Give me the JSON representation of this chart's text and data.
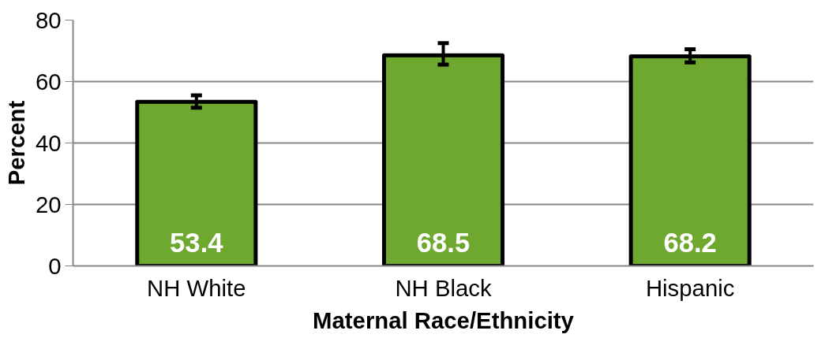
{
  "chart_data": {
    "type": "bar",
    "xlabel": "Maternal Race/Ethnicity",
    "ylabel": "Percent",
    "categories": [
      "NH White",
      "NH Black",
      "Hispanic"
    ],
    "values": [
      53.4,
      68.5,
      68.2
    ],
    "errors": [
      [
        51.5,
        55.5
      ],
      [
        65.5,
        72.5
      ],
      [
        66.2,
        70.5
      ]
    ],
    "color": "#6fa82f",
    "ylim": [
      0,
      80
    ],
    "yticks": [
      0,
      20,
      40,
      60,
      80
    ],
    "grid": "y",
    "data_labels": true
  }
}
